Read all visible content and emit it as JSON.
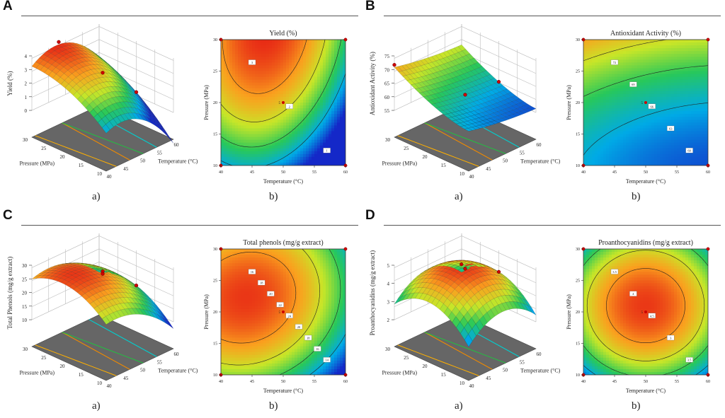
{
  "chart_data": [
    {
      "panel": "A",
      "type": "surface3d+contour",
      "title": "Yield (%)",
      "zlabel": "Yield (%)",
      "xlabel": "Temperature (°C)",
      "ylabel": "Pressure (MPa)",
      "zticks": [
        "0",
        "1",
        "2",
        "3",
        "4"
      ],
      "xticks3d": [
        "40",
        "45",
        "50",
        "55",
        "60"
      ],
      "yticks3d": [
        "10",
        "15",
        "20",
        "25",
        "30"
      ],
      "xticks2d": [
        "40",
        "45",
        "50",
        "55",
        "60"
      ],
      "yticks2d": [
        "10",
        "15",
        "20",
        "25",
        "30"
      ],
      "contour_labels": [
        "3",
        "2",
        "1"
      ],
      "center_label": "5",
      "peak": {
        "x": 48,
        "y": 30
      },
      "sublabels": [
        "a)",
        "b)"
      ]
    },
    {
      "panel": "B",
      "type": "surface3d+contour",
      "title": "Antioxidant Activity (%)",
      "zlabel": "Antioxidant Activity (%)",
      "xlabel": "Temperature (°C)",
      "ylabel": "Pressure (MPa)",
      "zticks": [
        "55",
        "60",
        "65",
        "70",
        "75"
      ],
      "xticks3d": [
        "40",
        "45",
        "50",
        "55",
        "60"
      ],
      "yticks3d": [
        "10",
        "15",
        "20",
        "25",
        "30"
      ],
      "xticks2d": [
        "40",
        "45",
        "50",
        "55",
        "60"
      ],
      "yticks2d": [
        "10",
        "15",
        "20",
        "25",
        "30"
      ],
      "contour_labels": [
        "72",
        "69",
        "66",
        "63",
        "60"
      ],
      "center_label": "5",
      "peak": {
        "x": 40,
        "y": 30
      },
      "sublabels": [
        "a)",
        "b)"
      ]
    },
    {
      "panel": "C",
      "type": "surface3d+contour",
      "title": "Total phenols (mg/g extract)",
      "zlabel": "Total Phenols (mg/g extract)",
      "xlabel": "Temperature (°C)",
      "ylabel": "Pressure (MPa)",
      "zticks": [
        "10",
        "15",
        "20",
        "25",
        "30"
      ],
      "xticks3d": [
        "40",
        "45",
        "50",
        "55",
        "60"
      ],
      "yticks3d": [
        "10",
        "15",
        "20",
        "25",
        "30"
      ],
      "xticks2d": [
        "40",
        "45",
        "50",
        "55",
        "60"
      ],
      "yticks2d": [
        "10",
        "15",
        "20",
        "25",
        "30"
      ],
      "contour_labels": [
        "16",
        "18",
        "20",
        "22",
        "24",
        "20",
        "18",
        "16",
        "14"
      ],
      "center_label": "5",
      "peak": {
        "x": 50,
        "y": 20
      },
      "sublabels": [
        "a)",
        "b)"
      ]
    },
    {
      "panel": "D",
      "type": "surface3d+contour",
      "title": "Proanthocyanidins (mg/g extract)",
      "zlabel": "Proanthocyanidins (mg/g extract)",
      "xlabel": "Temperature (°C)",
      "ylabel": "Pressure (MPa)",
      "zticks": [
        "2",
        "3",
        "4",
        "5"
      ],
      "xticks3d": [
        "40",
        "45",
        "50",
        "55",
        "60"
      ],
      "yticks3d": [
        "10",
        "15",
        "20",
        "25",
        "30"
      ],
      "xticks2d": [
        "40",
        "45",
        "50",
        "55",
        "60"
      ],
      "yticks2d": [
        "10",
        "15",
        "20",
        "25",
        "30"
      ],
      "contour_labels": [
        "3.5",
        "4",
        "4.5",
        "3",
        "3.5"
      ],
      "center_label": "5",
      "peak": {
        "x": 50,
        "y": 21
      },
      "sublabels": [
        "a)",
        "b)"
      ]
    }
  ]
}
